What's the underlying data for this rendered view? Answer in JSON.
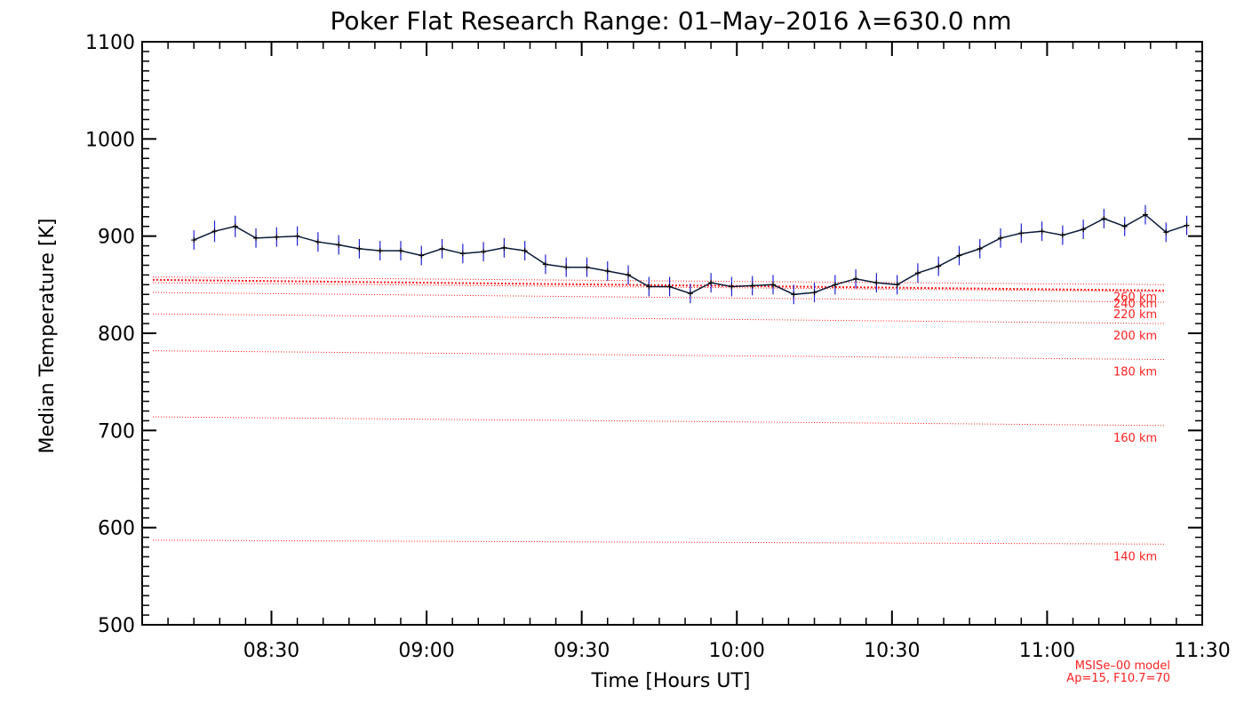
{
  "chart_data": {
    "type": "line",
    "title": "Poker Flat Research Range: 01–May–2016 λ=630.0 nm",
    "xlabel": "Time [Hours UT]",
    "ylabel": "Median Temperature [K]",
    "xlim": [
      8.0833,
      11.5
    ],
    "ylim": [
      500,
      1100
    ],
    "x_ticks": [
      8.5,
      9.0,
      9.5,
      10.0,
      10.5,
      11.0,
      11.5
    ],
    "x_tick_labels": [
      "08:30",
      "09:00",
      "09:30",
      "10:00",
      "10:30",
      "11:00",
      "11:30"
    ],
    "y_ticks": [
      500,
      600,
      700,
      800,
      900,
      1000,
      1100
    ],
    "y_tick_labels": [
      "500",
      "600",
      "700",
      "800",
      "900",
      "1000",
      "1100"
    ],
    "series": [
      {
        "name": "Median Temperature",
        "color": "#0a1a3a",
        "error_color": "#1f1fd0",
        "x": [
          8.25,
          8.3167,
          8.3833,
          8.45,
          8.5167,
          8.5833,
          8.65,
          8.7167,
          8.7833,
          8.85,
          8.9167,
          8.9833,
          9.05,
          9.1167,
          9.1833,
          9.25,
          9.3167,
          9.3833,
          9.45,
          9.5167,
          9.5833,
          9.65,
          9.7167,
          9.7833,
          9.85,
          9.9167,
          9.9833,
          10.05,
          10.1167,
          10.1833,
          10.25,
          10.3167,
          10.3833,
          10.45,
          10.5167,
          10.5833,
          10.65,
          10.7167,
          10.7833,
          10.85,
          10.9167,
          10.9833,
          11.05,
          11.1167,
          11.1833,
          11.25,
          11.3167,
          11.3833,
          11.45
        ],
        "y": [
          896,
          905,
          910,
          898,
          899,
          900,
          894,
          891,
          887,
          885,
          885,
          880,
          887,
          882,
          884,
          888,
          885,
          871,
          868,
          868,
          864,
          860,
          848,
          848,
          841,
          852,
          848,
          849,
          850,
          840,
          842,
          850,
          856,
          852,
          850,
          862,
          869,
          880,
          887,
          898,
          903,
          905,
          901,
          907,
          918,
          910,
          922,
          904,
          911
        ],
        "err": [
          10,
          11,
          11,
          10,
          10,
          10,
          10,
          10,
          10,
          10,
          10,
          10,
          10,
          10,
          10,
          10,
          10,
          10,
          10,
          10,
          10,
          10,
          10,
          10,
          10,
          10,
          10,
          10,
          10,
          10,
          10,
          10,
          10,
          10,
          10,
          10,
          10,
          10,
          10,
          10,
          10,
          10,
          10,
          10,
          10,
          10,
          10,
          10,
          10
        ]
      }
    ],
    "model_curves": [
      {
        "label": "140 km",
        "start": 587,
        "end": 583
      },
      {
        "label": "160 km",
        "start": 714,
        "end": 705
      },
      {
        "label": "180 km",
        "start": 782,
        "end": 773
      },
      {
        "label": "200 km",
        "start": 820,
        "end": 810
      },
      {
        "label": "220 km",
        "start": 842,
        "end": 832
      },
      {
        "label": "240 km",
        "start": 852,
        "end": 843
      },
      {
        "label": "260 km",
        "start": 858,
        "end": 850
      }
    ],
    "highlighted_curve": {
      "start": 855,
      "end": 844
    },
    "model_note_line1": "MSISe–00 model",
    "model_note_line2": "Ap=15, F10.7=70",
    "model_color": "#ff2020"
  }
}
